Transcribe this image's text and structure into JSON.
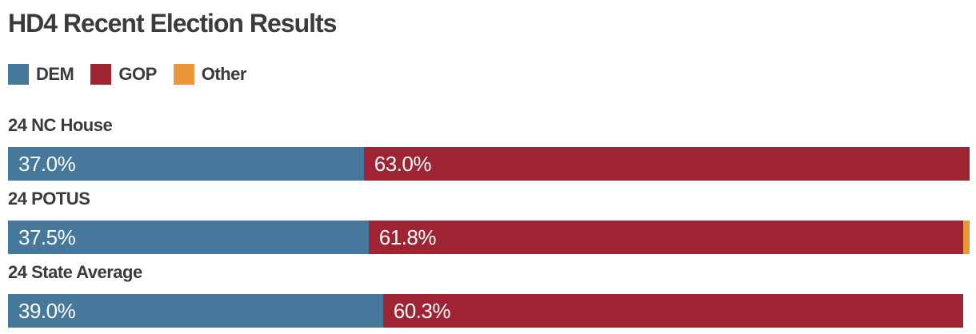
{
  "chart_data": {
    "type": "bar",
    "variant": "horizontal-stacked",
    "title": "HD4 Recent Election Results",
    "value_unit": "percent",
    "axis_range_percent": [
      0,
      100
    ],
    "grid": false,
    "legend_position": "top-left",
    "legend": [
      {
        "name": "DEM",
        "color": "#45789b"
      },
      {
        "name": "GOP",
        "color": "#9e2433"
      },
      {
        "name": "Other",
        "color": "#e9973a"
      }
    ],
    "rows": [
      {
        "label": "24 NC House",
        "segments": [
          {
            "series": "DEM",
            "value": 37.0,
            "display": "37.0%"
          },
          {
            "series": "GOP",
            "value": 63.0,
            "display": "63.0%"
          }
        ]
      },
      {
        "label": "24 POTUS",
        "segments": [
          {
            "series": "DEM",
            "value": 37.5,
            "display": "37.5%"
          },
          {
            "series": "GOP",
            "value": 61.8,
            "display": "61.8%"
          },
          {
            "series": "Other",
            "value": 0.7,
            "display": ""
          }
        ]
      },
      {
        "label": "24 State Average",
        "segments": [
          {
            "series": "DEM",
            "value": 39.0,
            "display": "39.0%"
          },
          {
            "series": "GOP",
            "value": 60.3,
            "display": "60.3%"
          }
        ]
      }
    ],
    "colors": {
      "title_text": "#3b3b3b",
      "bar_label_text": "#ffffff",
      "background": "#ffffff"
    }
  }
}
